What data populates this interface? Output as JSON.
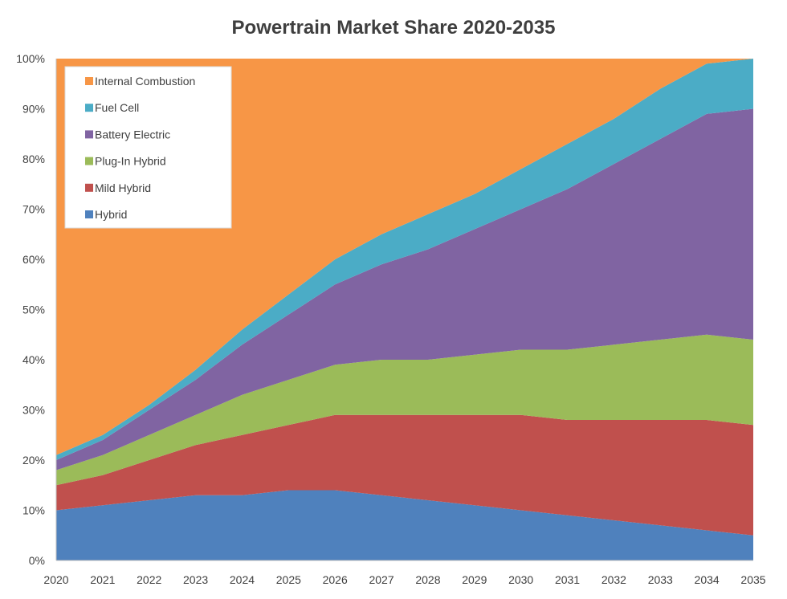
{
  "chart_data": {
    "type": "area",
    "stacked": true,
    "title": "Powertrain Market Share 2020-2035",
    "xlabel": "",
    "ylabel": "",
    "x": [
      2020,
      2021,
      2022,
      2023,
      2024,
      2025,
      2026,
      2027,
      2028,
      2029,
      2030,
      2031,
      2032,
      2033,
      2034,
      2035
    ],
    "ylim": [
      0,
      100
    ],
    "y_ticks": [
      "0%",
      "10%",
      "20%",
      "30%",
      "40%",
      "50%",
      "60%",
      "70%",
      "80%",
      "90%",
      "100%"
    ],
    "grid": false,
    "legend_position": "top-left",
    "series": [
      {
        "name": "Hybrid",
        "color": "#4f81bd",
        "values": [
          10,
          11,
          12,
          13,
          13,
          14,
          14,
          13,
          12,
          11,
          10,
          9,
          8,
          7,
          6,
          5
        ]
      },
      {
        "name": "Mild Hybrid",
        "color": "#c0504d",
        "values": [
          5,
          6,
          8,
          10,
          12,
          13,
          15,
          16,
          17,
          18,
          19,
          19,
          20,
          21,
          22,
          22
        ]
      },
      {
        "name": "Plug-In Hybrid",
        "color": "#9bbb59",
        "values": [
          3,
          4,
          5,
          6,
          8,
          9,
          10,
          11,
          11,
          12,
          13,
          14,
          15,
          16,
          17,
          17
        ]
      },
      {
        "name": "Battery Electric",
        "color": "#8064a2",
        "values": [
          2,
          3,
          5,
          7,
          10,
          13,
          16,
          19,
          22,
          25,
          28,
          32,
          36,
          40,
          44,
          46
        ]
      },
      {
        "name": "Fuel Cell",
        "color": "#4bacc6",
        "values": [
          1,
          1,
          1,
          2,
          3,
          4,
          5,
          6,
          7,
          7,
          8,
          9,
          9,
          10,
          10,
          10
        ]
      },
      {
        "name": "Internal Combustion",
        "color": "#f79646",
        "values": [
          79,
          75,
          69,
          62,
          54,
          47,
          40,
          35,
          31,
          27,
          22,
          17,
          12,
          6,
          1,
          0
        ]
      }
    ]
  }
}
